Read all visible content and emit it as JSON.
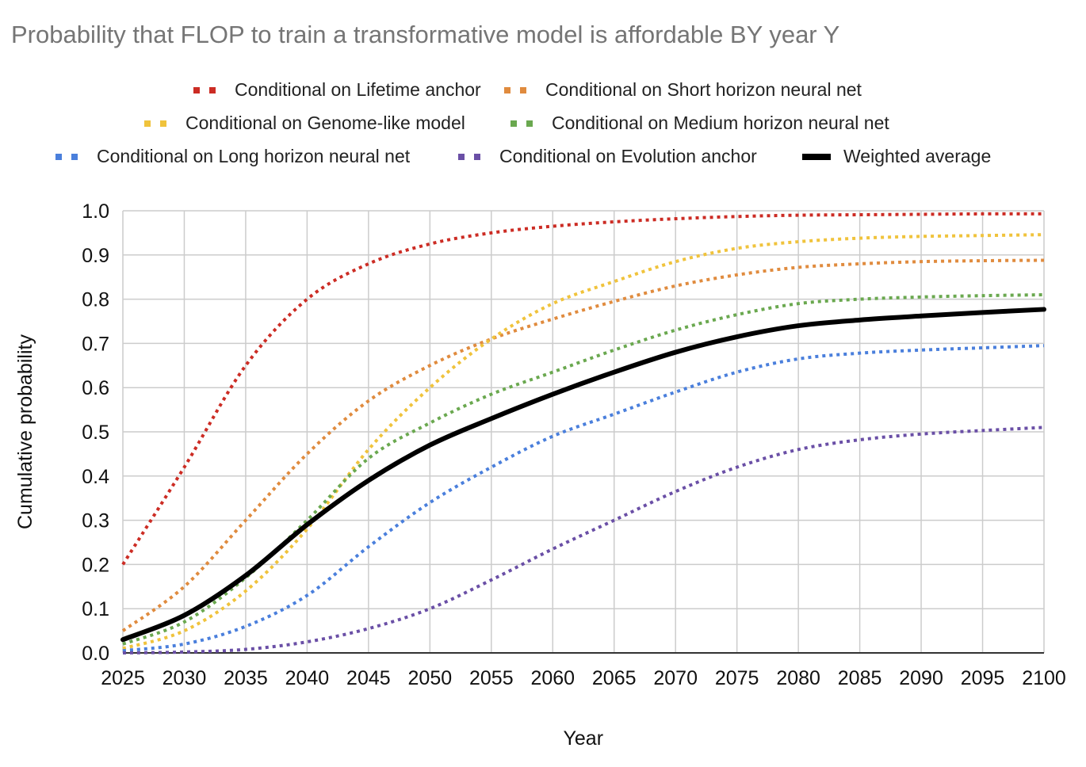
{
  "chart_data": {
    "type": "line",
    "title": "Probability that FLOP to train a transformative model is affordable BY year Y",
    "xlabel": "Year",
    "ylabel": "Cumulative probability",
    "xlim": [
      2025,
      2100
    ],
    "ylim": [
      0,
      1
    ],
    "x_ticks": [
      "2025",
      "2030",
      "2035",
      "2040",
      "2045",
      "2050",
      "2055",
      "2060",
      "2065",
      "2070",
      "2075",
      "2080",
      "2085",
      "2090",
      "2095",
      "2100"
    ],
    "y_ticks": [
      "0.0",
      "0.1",
      "0.2",
      "0.3",
      "0.4",
      "0.5",
      "0.6",
      "0.7",
      "0.8",
      "0.9",
      "1.0"
    ],
    "grid": true,
    "legend_position": "top",
    "x": [
      2025,
      2030,
      2035,
      2040,
      2045,
      2050,
      2055,
      2060,
      2065,
      2070,
      2075,
      2080,
      2085,
      2090,
      2095,
      2100
    ],
    "series": [
      {
        "name": "Conditional on Lifetime anchor",
        "color": "#cc2c24",
        "style": "dotted",
        "values": [
          0.2,
          0.42,
          0.65,
          0.8,
          0.88,
          0.925,
          0.95,
          0.965,
          0.975,
          0.982,
          0.987,
          0.99,
          0.991,
          0.992,
          0.993,
          0.993
        ]
      },
      {
        "name": "Conditional on Short horizon neural net",
        "color": "#e08b3e",
        "style": "dotted",
        "values": [
          0.05,
          0.15,
          0.3,
          0.45,
          0.57,
          0.65,
          0.71,
          0.755,
          0.795,
          0.83,
          0.855,
          0.872,
          0.88,
          0.885,
          0.887,
          0.888
        ]
      },
      {
        "name": "Conditional on Genome-like model",
        "color": "#f0c33c",
        "style": "dotted",
        "values": [
          0.01,
          0.05,
          0.14,
          0.28,
          0.46,
          0.6,
          0.71,
          0.79,
          0.84,
          0.885,
          0.915,
          0.93,
          0.938,
          0.942,
          0.944,
          0.946
        ]
      },
      {
        "name": "Conditional on Medium horizon neural net",
        "color": "#6aa84f",
        "style": "dotted",
        "values": [
          0.02,
          0.07,
          0.17,
          0.3,
          0.44,
          0.52,
          0.585,
          0.635,
          0.685,
          0.73,
          0.765,
          0.79,
          0.8,
          0.805,
          0.808,
          0.81
        ]
      },
      {
        "name": "Conditional on Long horizon neural net",
        "color": "#4a7fdc",
        "style": "dotted",
        "values": [
          0.005,
          0.02,
          0.06,
          0.13,
          0.24,
          0.34,
          0.42,
          0.49,
          0.54,
          0.59,
          0.635,
          0.665,
          0.678,
          0.685,
          0.69,
          0.695
        ]
      },
      {
        "name": "Conditional on Evolution anchor",
        "color": "#6a4fa6",
        "style": "dotted",
        "values": [
          0.0,
          0.002,
          0.008,
          0.025,
          0.055,
          0.1,
          0.165,
          0.235,
          0.3,
          0.365,
          0.42,
          0.46,
          0.482,
          0.495,
          0.503,
          0.51
        ]
      },
      {
        "name": "Weighted average",
        "color": "#000000",
        "style": "solid",
        "values": [
          0.03,
          0.085,
          0.175,
          0.29,
          0.39,
          0.47,
          0.53,
          0.585,
          0.635,
          0.68,
          0.715,
          0.74,
          0.753,
          0.762,
          0.77,
          0.777
        ]
      }
    ]
  }
}
